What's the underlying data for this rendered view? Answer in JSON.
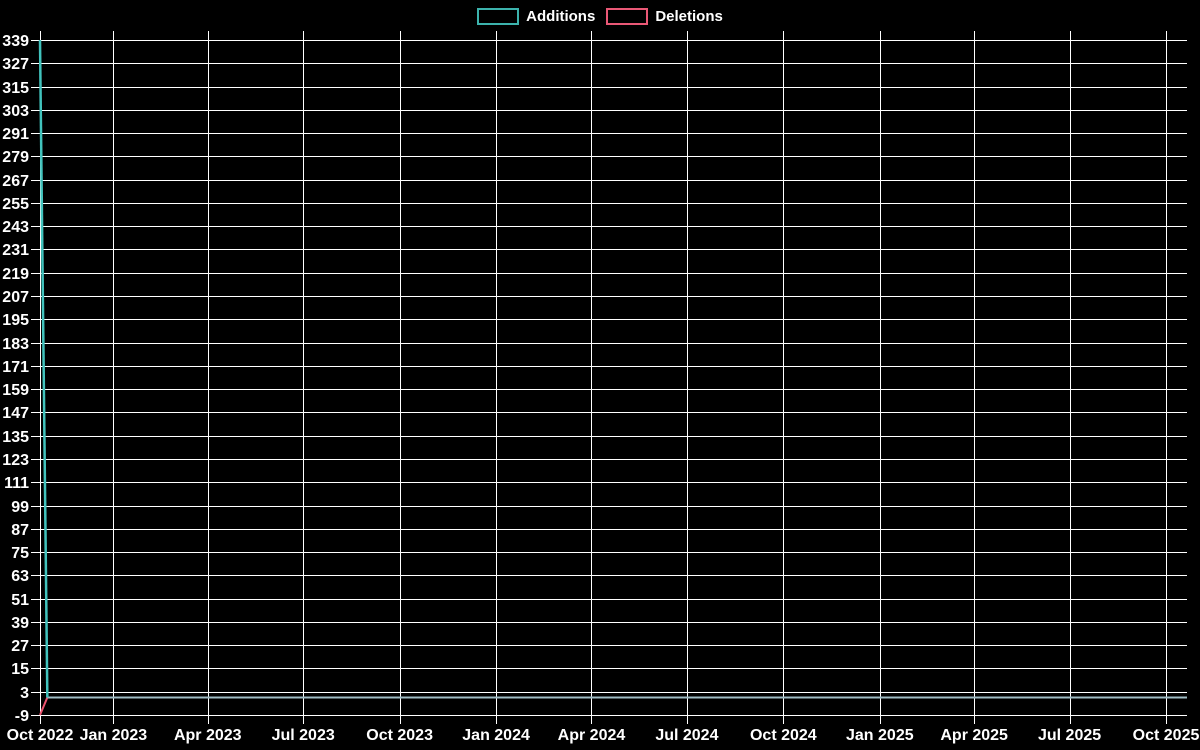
{
  "legend": {
    "items": [
      {
        "label": "Additions",
        "color": "#3CB3AD"
      },
      {
        "label": "Deletions",
        "color": "#EA5876"
      }
    ]
  },
  "chart_data": {
    "type": "line",
    "title": "",
    "xlabel": "",
    "ylabel": "",
    "legend_position": "top-center",
    "background": "#000000",
    "grid": true,
    "grid_color": "#FFFFFF",
    "text_color": "#FFFFFF",
    "x_domain": [
      "2022-10-23",
      "2025-10-21"
    ],
    "ylim": [
      -9,
      339
    ],
    "ytick_step": 12,
    "yticks": [
      339,
      327,
      315,
      303,
      291,
      279,
      267,
      255,
      243,
      231,
      219,
      207,
      195,
      183,
      171,
      159,
      147,
      135,
      123,
      111,
      99,
      87,
      75,
      63,
      51,
      39,
      27,
      15,
      3,
      -9
    ],
    "xticks": [
      {
        "label": "Oct 2022",
        "date": "2022-10-23"
      },
      {
        "label": "Jan 2023",
        "date": "2023-01-01"
      },
      {
        "label": "Apr 2023",
        "date": "2023-04-01"
      },
      {
        "label": "Jul 2023",
        "date": "2023-07-01"
      },
      {
        "label": "Oct 2023",
        "date": "2023-10-01"
      },
      {
        "label": "Jan 2024",
        "date": "2024-01-01"
      },
      {
        "label": "Apr 2024",
        "date": "2024-04-01"
      },
      {
        "label": "Jul 2024",
        "date": "2024-07-01"
      },
      {
        "label": "Oct 2024",
        "date": "2024-10-01"
      },
      {
        "label": "Jan 2025",
        "date": "2025-01-01"
      },
      {
        "label": "Apr 2025",
        "date": "2025-04-01"
      },
      {
        "label": "Jul 2025",
        "date": "2025-07-01"
      },
      {
        "label": "Oct 2025",
        "date": "2025-10-01"
      }
    ],
    "series": [
      {
        "name": "Additions",
        "color": "#3CB3AD",
        "line_color": "#41C3BD",
        "zero_segment_color": "#9FBCC4",
        "points": [
          [
            "2022-10-23",
            339
          ],
          [
            "2022-10-30",
            0
          ],
          [
            "2025-10-21",
            0
          ]
        ]
      },
      {
        "name": "Deletions",
        "color": "#EA5876",
        "line_color": "#ED5470",
        "points": [
          [
            "2022-10-23",
            -9
          ],
          [
            "2022-10-30",
            0
          ],
          [
            "2025-10-21",
            0
          ]
        ]
      }
    ]
  }
}
